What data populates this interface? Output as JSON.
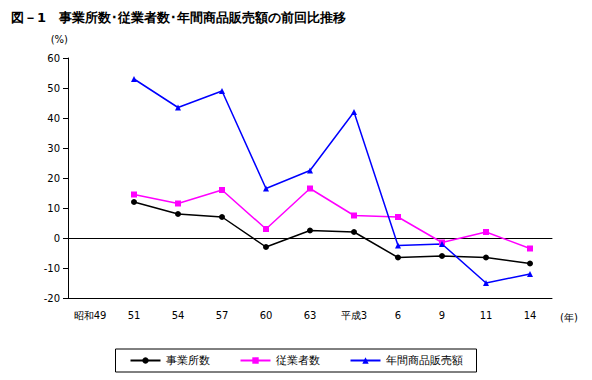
{
  "chart_data": {
    "type": "line",
    "title": "図－1　事業所数･従業者数･年間商品販売額の前回比推移",
    "x_label": "(年)",
    "y_label": "(%)",
    "categories": [
      "昭和49",
      "51",
      "54",
      "57",
      "60",
      "63",
      "平成3",
      "6",
      "9",
      "11",
      "14"
    ],
    "series": [
      {
        "name": "事業所数",
        "color": "#000000",
        "marker": "circle",
        "values": [
          null,
          12,
          8,
          7,
          -3,
          2.5,
          2,
          -6.5,
          -6,
          -6.5,
          -8.5
        ]
      },
      {
        "name": "従業者数",
        "color": "#ff00ff",
        "marker": "square",
        "values": [
          null,
          14.5,
          11.5,
          16,
          3,
          16.5,
          7.5,
          7,
          -1.5,
          2,
          -3.5
        ]
      },
      {
        "name": "年間商品販売額",
        "color": "#0000ff",
        "marker": "triangle",
        "values": [
          null,
          53,
          43.5,
          49,
          16.5,
          22.5,
          42,
          -2.5,
          -2,
          -15,
          -12
        ]
      }
    ],
    "ylim": [
      -20,
      60
    ],
    "yticks": [
      -20,
      -10,
      0,
      10,
      20,
      30,
      40,
      50,
      60
    ],
    "grid": false,
    "legend": "bottom"
  }
}
